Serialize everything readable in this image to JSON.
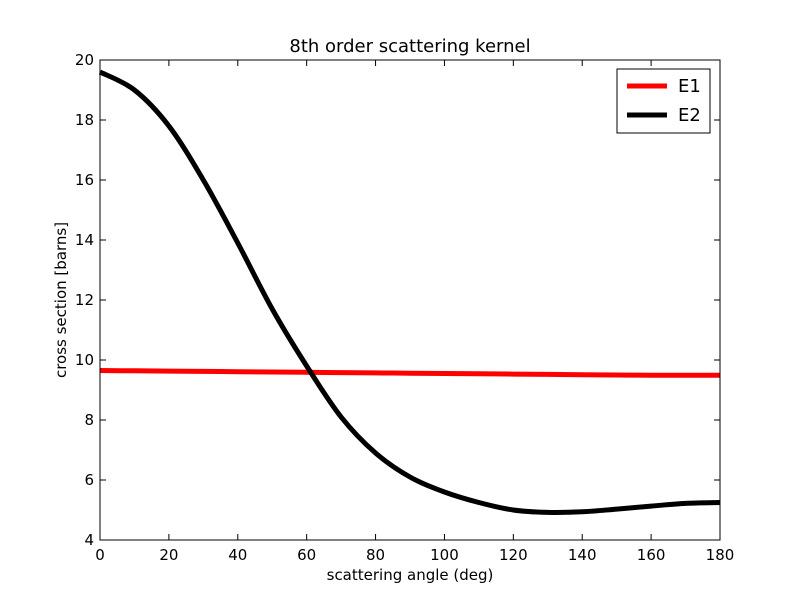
{
  "chart_data": {
    "type": "line",
    "title": "8th order scattering kernel",
    "xlabel": "scattering angle (deg)",
    "ylabel": "cross section [barns]",
    "xlim": [
      0,
      180
    ],
    "ylim": [
      4,
      20
    ],
    "xticks": [
      0,
      20,
      40,
      60,
      80,
      100,
      120,
      140,
      160,
      180
    ],
    "yticks": [
      4,
      6,
      8,
      10,
      12,
      14,
      16,
      18,
      20
    ],
    "grid": false,
    "legend_position": "top-right",
    "x": [
      0,
      10,
      20,
      30,
      40,
      50,
      60,
      70,
      80,
      90,
      100,
      110,
      120,
      130,
      140,
      150,
      160,
      170,
      180
    ],
    "series": [
      {
        "name": "E1",
        "color": "#ff0000",
        "values": [
          9.65,
          9.64,
          9.63,
          9.62,
          9.61,
          9.6,
          9.59,
          9.58,
          9.57,
          9.56,
          9.55,
          9.54,
          9.53,
          9.52,
          9.51,
          9.5,
          9.49,
          9.49,
          9.49
        ]
      },
      {
        "name": "E2",
        "color": "#000000",
        "values": [
          19.6,
          19.0,
          17.8,
          16.0,
          13.9,
          11.7,
          9.8,
          8.1,
          6.9,
          6.1,
          5.6,
          5.25,
          5.0,
          4.92,
          4.94,
          5.03,
          5.13,
          5.22,
          5.25
        ]
      }
    ]
  }
}
